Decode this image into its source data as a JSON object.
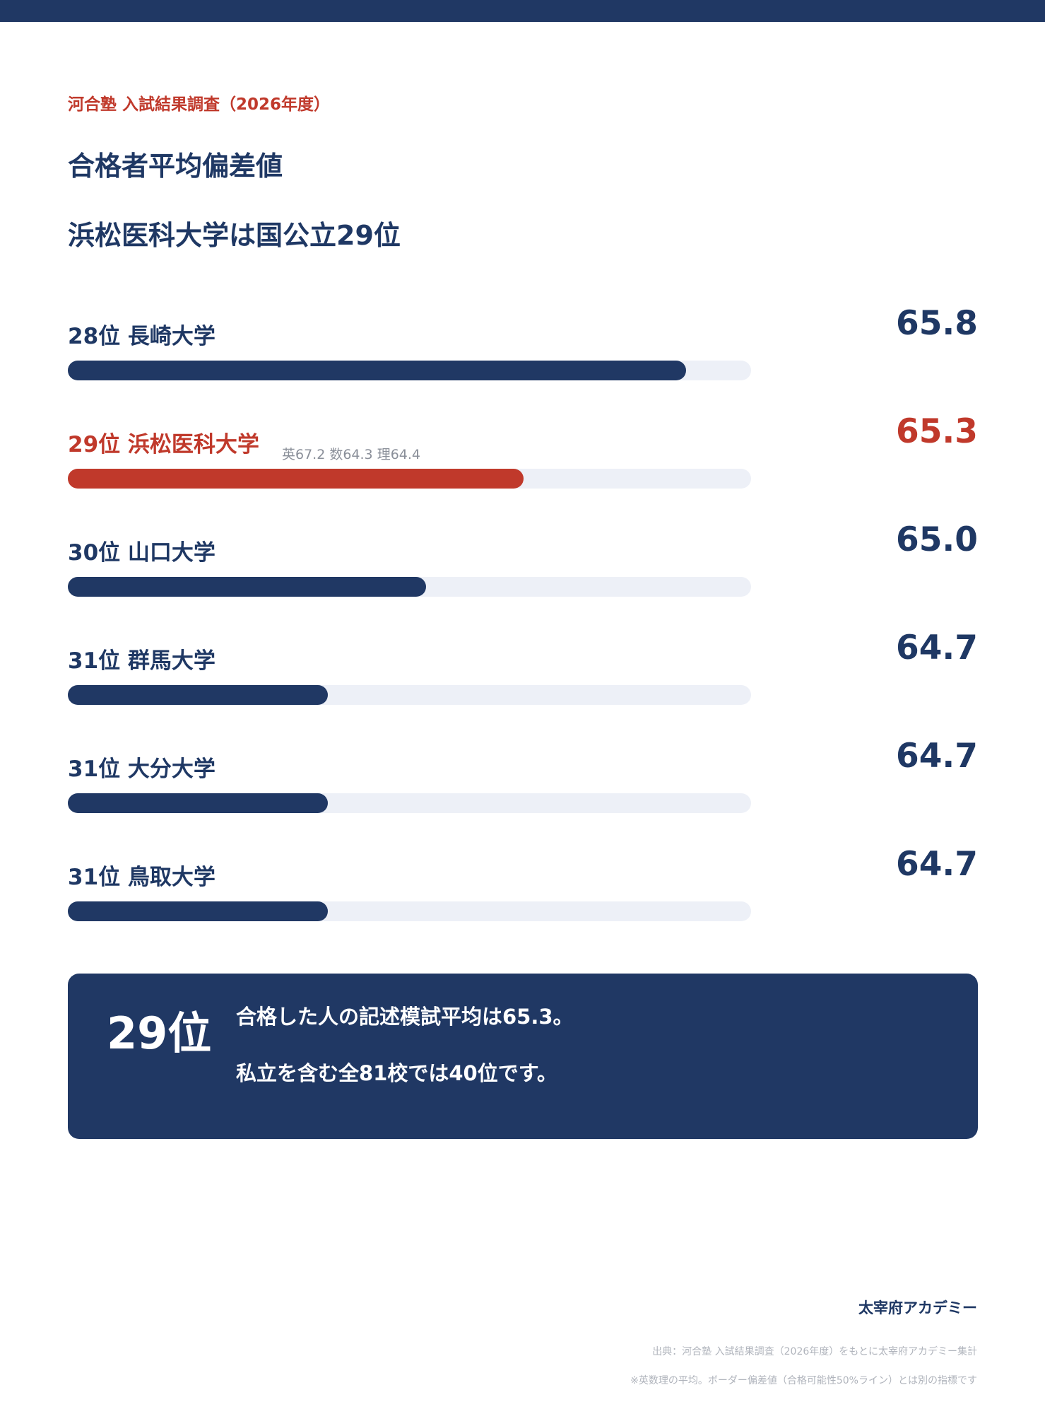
{
  "header": {
    "source_tag": "河合塾 入試結果調査（2026年度）",
    "title": "合格者平均偏差値",
    "subtitle": "浜松医科大学は国公立29位"
  },
  "colors": {
    "primary": "#203864",
    "highlight": "#c0392b",
    "track": "#edf0f7"
  },
  "chart_data": {
    "type": "bar",
    "orientation": "horizontal",
    "categories": [
      "28位 長崎大学",
      "29位 浜松医科大学",
      "30位 山口大学",
      "31位 群馬大学",
      "31位 大分大学",
      "31位 鳥取大学"
    ],
    "values": [
      65.8,
      65.3,
      65.0,
      64.7,
      64.7,
      64.7
    ],
    "value_labels": [
      "65.8",
      "65.3",
      "65.0",
      "64.7",
      "64.7",
      "64.7"
    ],
    "highlight_index": 1,
    "highlight_detail": "英67.2 数64.3 理64.4",
    "xlim": [
      63.9,
      66.0
    ],
    "grid": false
  },
  "summary": {
    "rank": "29位",
    "line1": "合格した人の記述模試平均は65.3。",
    "line2": "私立を含む全81校では40位です。"
  },
  "footer": {
    "brand": "太宰府アカデミー",
    "source": "出典：河合塾 入試結果調査（2026年度）をもとに太宰府アカデミー集計",
    "note": "※英数理の平均。ボーダー偏差値（合格可能性50%ライン）とは別の指標です"
  }
}
